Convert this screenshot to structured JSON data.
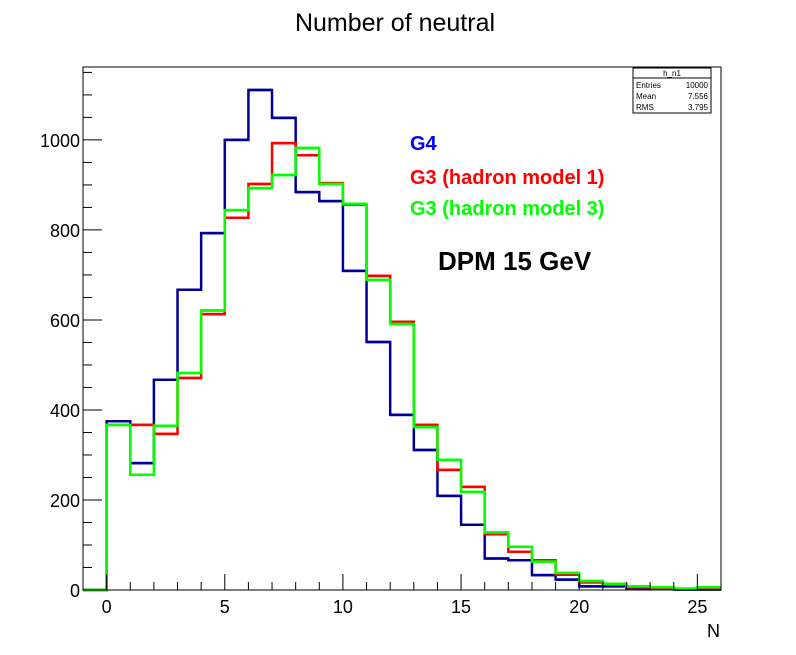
{
  "chart_data": {
    "type": "histogram-step",
    "title": "Number of neutral",
    "xlabel": "N",
    "ylabel": "",
    "xlim": [
      -1,
      26
    ],
    "ylim": [
      0,
      1162
    ],
    "bin_width": 1,
    "bin_edges_start": 0,
    "x_ticks": [
      0,
      5,
      10,
      15,
      20,
      25
    ],
    "x_tick_labels": [
      "0",
      "5",
      "10",
      "15",
      "20",
      "25"
    ],
    "y_ticks": [
      0,
      200,
      400,
      600,
      800,
      1000
    ],
    "y_tick_labels": [
      "0",
      "200",
      "400",
      "600",
      "800",
      "1000"
    ],
    "grid": false,
    "legend_placement": "top-center-right",
    "series": [
      {
        "name": "G4",
        "color": "#000099",
        "values": [
          375,
          282,
          467,
          667,
          793,
          1000,
          1111,
          1049,
          884,
          864,
          709,
          551,
          389,
          311,
          209,
          145,
          70,
          66,
          33,
          23,
          8,
          8,
          3,
          2,
          1,
          1
        ]
      },
      {
        "name": "G3 (hadron model 1)",
        "color": "#ff0000",
        "values": [
          367,
          367,
          347,
          471,
          613,
          827,
          902,
          993,
          966,
          904,
          856,
          698,
          596,
          367,
          267,
          229,
          124,
          85,
          66,
          34,
          17,
          12,
          6,
          2,
          2,
          2
        ]
      },
      {
        "name": "G3 (hadron model 3)",
        "color": "#00ff00",
        "values": [
          367,
          256,
          365,
          482,
          621,
          844,
          893,
          922,
          982,
          902,
          858,
          689,
          591,
          362,
          289,
          218,
          128,
          96,
          63,
          38,
          20,
          14,
          8,
          6,
          3,
          6
        ]
      }
    ],
    "legend": [
      {
        "label": "G4",
        "color": "#0000ff"
      },
      {
        "label": "G3 (hadron model 1)",
        "color": "#ff0000"
      },
      {
        "label": "G3 (hadron model 3)",
        "color": "#00ff00"
      }
    ],
    "annotation": "DPM 15 GeV",
    "stats_box": {
      "name": "h_n1",
      "rows": [
        {
          "label": "Entries",
          "value": "10000"
        },
        {
          "label": "Mean",
          "value": "7.556"
        },
        {
          "label": "RMS",
          "value": "3.795"
        }
      ]
    }
  }
}
